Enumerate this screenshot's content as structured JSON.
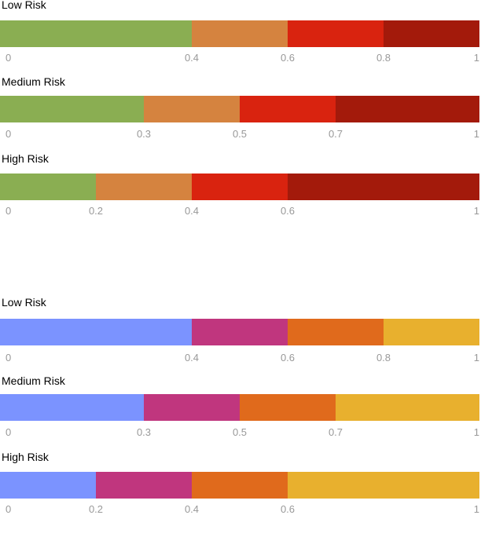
{
  "chart_data": [
    {
      "type": "bar",
      "stacked": true,
      "orientation": "horizontal",
      "title": "Low Risk",
      "breakpoints": [
        0,
        0.4,
        0.6,
        0.8,
        1
      ],
      "colors": [
        "#8aae52",
        "#d5833f",
        "#d9230f",
        "#a31a0b"
      ],
      "tick_labels": [
        "0",
        "0.4",
        "0.6",
        "0.8",
        "1"
      ]
    },
    {
      "type": "bar",
      "stacked": true,
      "orientation": "horizontal",
      "title": "Medium Risk",
      "breakpoints": [
        0,
        0.3,
        0.5,
        0.7,
        1
      ],
      "colors": [
        "#8aae52",
        "#d5833f",
        "#d9230f",
        "#a31a0b"
      ],
      "tick_labels": [
        "0",
        "0.3",
        "0.5",
        "0.7",
        "1"
      ]
    },
    {
      "type": "bar",
      "stacked": true,
      "orientation": "horizontal",
      "title": "High Risk",
      "breakpoints": [
        0,
        0.2,
        0.4,
        0.6,
        1
      ],
      "colors": [
        "#8aae52",
        "#d5833f",
        "#d9230f",
        "#a31a0b"
      ],
      "tick_labels": [
        "0",
        "0.2",
        "0.4",
        "0.6",
        "1"
      ]
    },
    {
      "type": "bar",
      "stacked": true,
      "orientation": "horizontal",
      "title": "Low Risk",
      "breakpoints": [
        0,
        0.4,
        0.6,
        0.8,
        1
      ],
      "colors": [
        "#7b93ff",
        "#c0367e",
        "#e06a1c",
        "#e8b02e"
      ],
      "tick_labels": [
        "0",
        "0.4",
        "0.6",
        "0.8",
        "1"
      ]
    },
    {
      "type": "bar",
      "stacked": true,
      "orientation": "horizontal",
      "title": "Medium Risk",
      "breakpoints": [
        0,
        0.3,
        0.5,
        0.7,
        1
      ],
      "colors": [
        "#7b93ff",
        "#c0367e",
        "#e06a1c",
        "#e8b02e"
      ],
      "tick_labels": [
        "0",
        "0.3",
        "0.5",
        "0.7",
        "1"
      ]
    },
    {
      "type": "bar",
      "stacked": true,
      "orientation": "horizontal",
      "title": "High Risk",
      "breakpoints": [
        0,
        0.2,
        0.4,
        0.6,
        1
      ],
      "colors": [
        "#7b93ff",
        "#c0367e",
        "#e06a1c",
        "#e8b02e"
      ],
      "tick_labels": [
        "0",
        "0.2",
        "0.4",
        "0.6",
        "1"
      ]
    }
  ]
}
